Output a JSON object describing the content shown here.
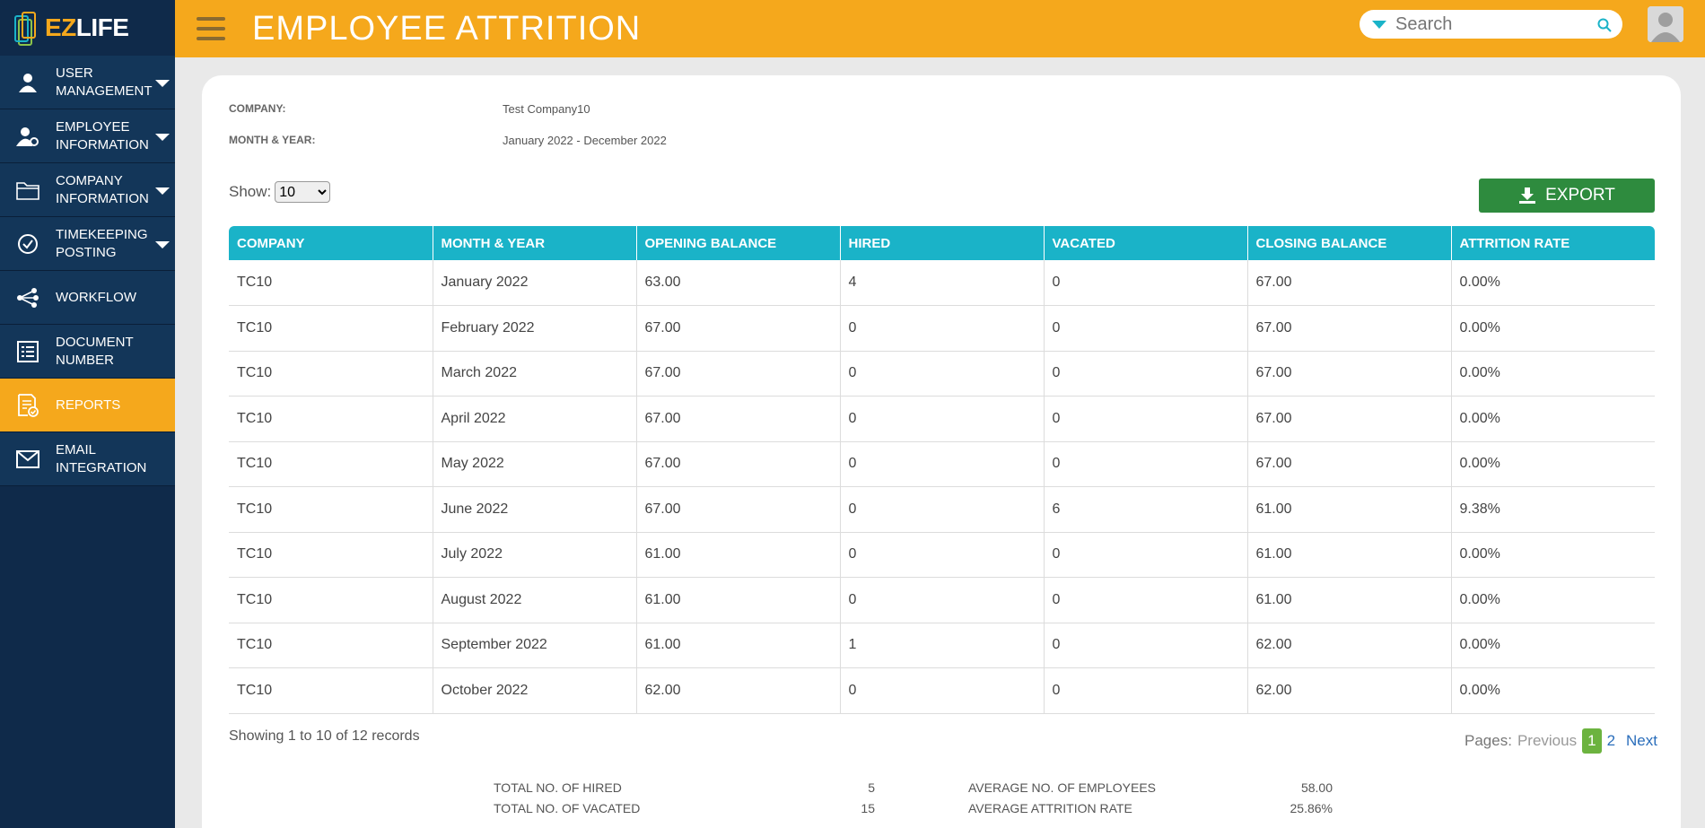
{
  "app": {
    "logo_ez": "EZ",
    "logo_life": "LIFE"
  },
  "header": {
    "title": "EMPLOYEE ATTRITION",
    "search_placeholder": "Search"
  },
  "sidebar": {
    "items": [
      {
        "line1": "USER",
        "line2": "MANAGEMENT",
        "icon": "user-icon",
        "caret": true
      },
      {
        "line1": "EMPLOYEE",
        "line2": "INFORMATION",
        "icon": "user-gear-icon",
        "caret": true
      },
      {
        "line1": "COMPANY",
        "line2": "INFORMATION",
        "icon": "folder-icon",
        "caret": true
      },
      {
        "line1": "TIMEKEEPING",
        "line2": "POSTING",
        "icon": "check-circle-icon",
        "caret": true
      },
      {
        "line1": "WORKFLOW",
        "line2": "",
        "icon": "workflow-icon",
        "caret": false
      },
      {
        "line1": "DOCUMENT",
        "line2": "NUMBER",
        "icon": "list-icon",
        "caret": false
      },
      {
        "line1": "REPORTS",
        "line2": "",
        "icon": "report-icon",
        "caret": false,
        "active": true
      },
      {
        "line1": "EMAIL",
        "line2": "INTEGRATION",
        "icon": "mail-icon",
        "caret": false
      }
    ]
  },
  "meta": {
    "company_label": "COMPANY:",
    "company_value": "Test Company10",
    "month_label": "MONTH & YEAR:",
    "month_value": "January 2022 - December 2022"
  },
  "controls": {
    "show_label": "Show:",
    "show_value": "10",
    "export_label": "EXPORT"
  },
  "table": {
    "headers": [
      "COMPANY",
      "MONTH & YEAR",
      "OPENING BALANCE",
      "HIRED",
      "VACATED",
      "CLOSING BALANCE",
      "ATTRITION RATE"
    ],
    "rows": [
      [
        "TC10",
        "January 2022",
        "63.00",
        "4",
        "0",
        "67.00",
        "0.00%"
      ],
      [
        "TC10",
        "February 2022",
        "67.00",
        "0",
        "0",
        "67.00",
        "0.00%"
      ],
      [
        "TC10",
        "March 2022",
        "67.00",
        "0",
        "0",
        "67.00",
        "0.00%"
      ],
      [
        "TC10",
        "April 2022",
        "67.00",
        "0",
        "0",
        "67.00",
        "0.00%"
      ],
      [
        "TC10",
        "May 2022",
        "67.00",
        "0",
        "0",
        "67.00",
        "0.00%"
      ],
      [
        "TC10",
        "June 2022",
        "67.00",
        "0",
        "6",
        "61.00",
        "9.38%"
      ],
      [
        "TC10",
        "July 2022",
        "61.00",
        "0",
        "0",
        "61.00",
        "0.00%"
      ],
      [
        "TC10",
        "August 2022",
        "61.00",
        "0",
        "0",
        "61.00",
        "0.00%"
      ],
      [
        "TC10",
        "September 2022",
        "61.00",
        "1",
        "0",
        "62.00",
        "0.00%"
      ],
      [
        "TC10",
        "October 2022",
        "62.00",
        "0",
        "0",
        "62.00",
        "0.00%"
      ]
    ]
  },
  "footer": {
    "showing": "Showing 1 to 10 of 12 records",
    "pages_label": "Pages:",
    "previous": "Previous",
    "page1": "1",
    "page2": "2",
    "next": "Next"
  },
  "summary": {
    "hired_label": "TOTAL NO. OF HIRED",
    "hired_value": "5",
    "vacated_label": "TOTAL NO. OF VACATED",
    "vacated_value": "15",
    "avg_emp_label": "AVERAGE NO. OF EMPLOYEES",
    "avg_emp_value": "58.00",
    "avg_rate_label": "AVERAGE ATTRITION RATE",
    "avg_rate_value": "25.86%"
  }
}
